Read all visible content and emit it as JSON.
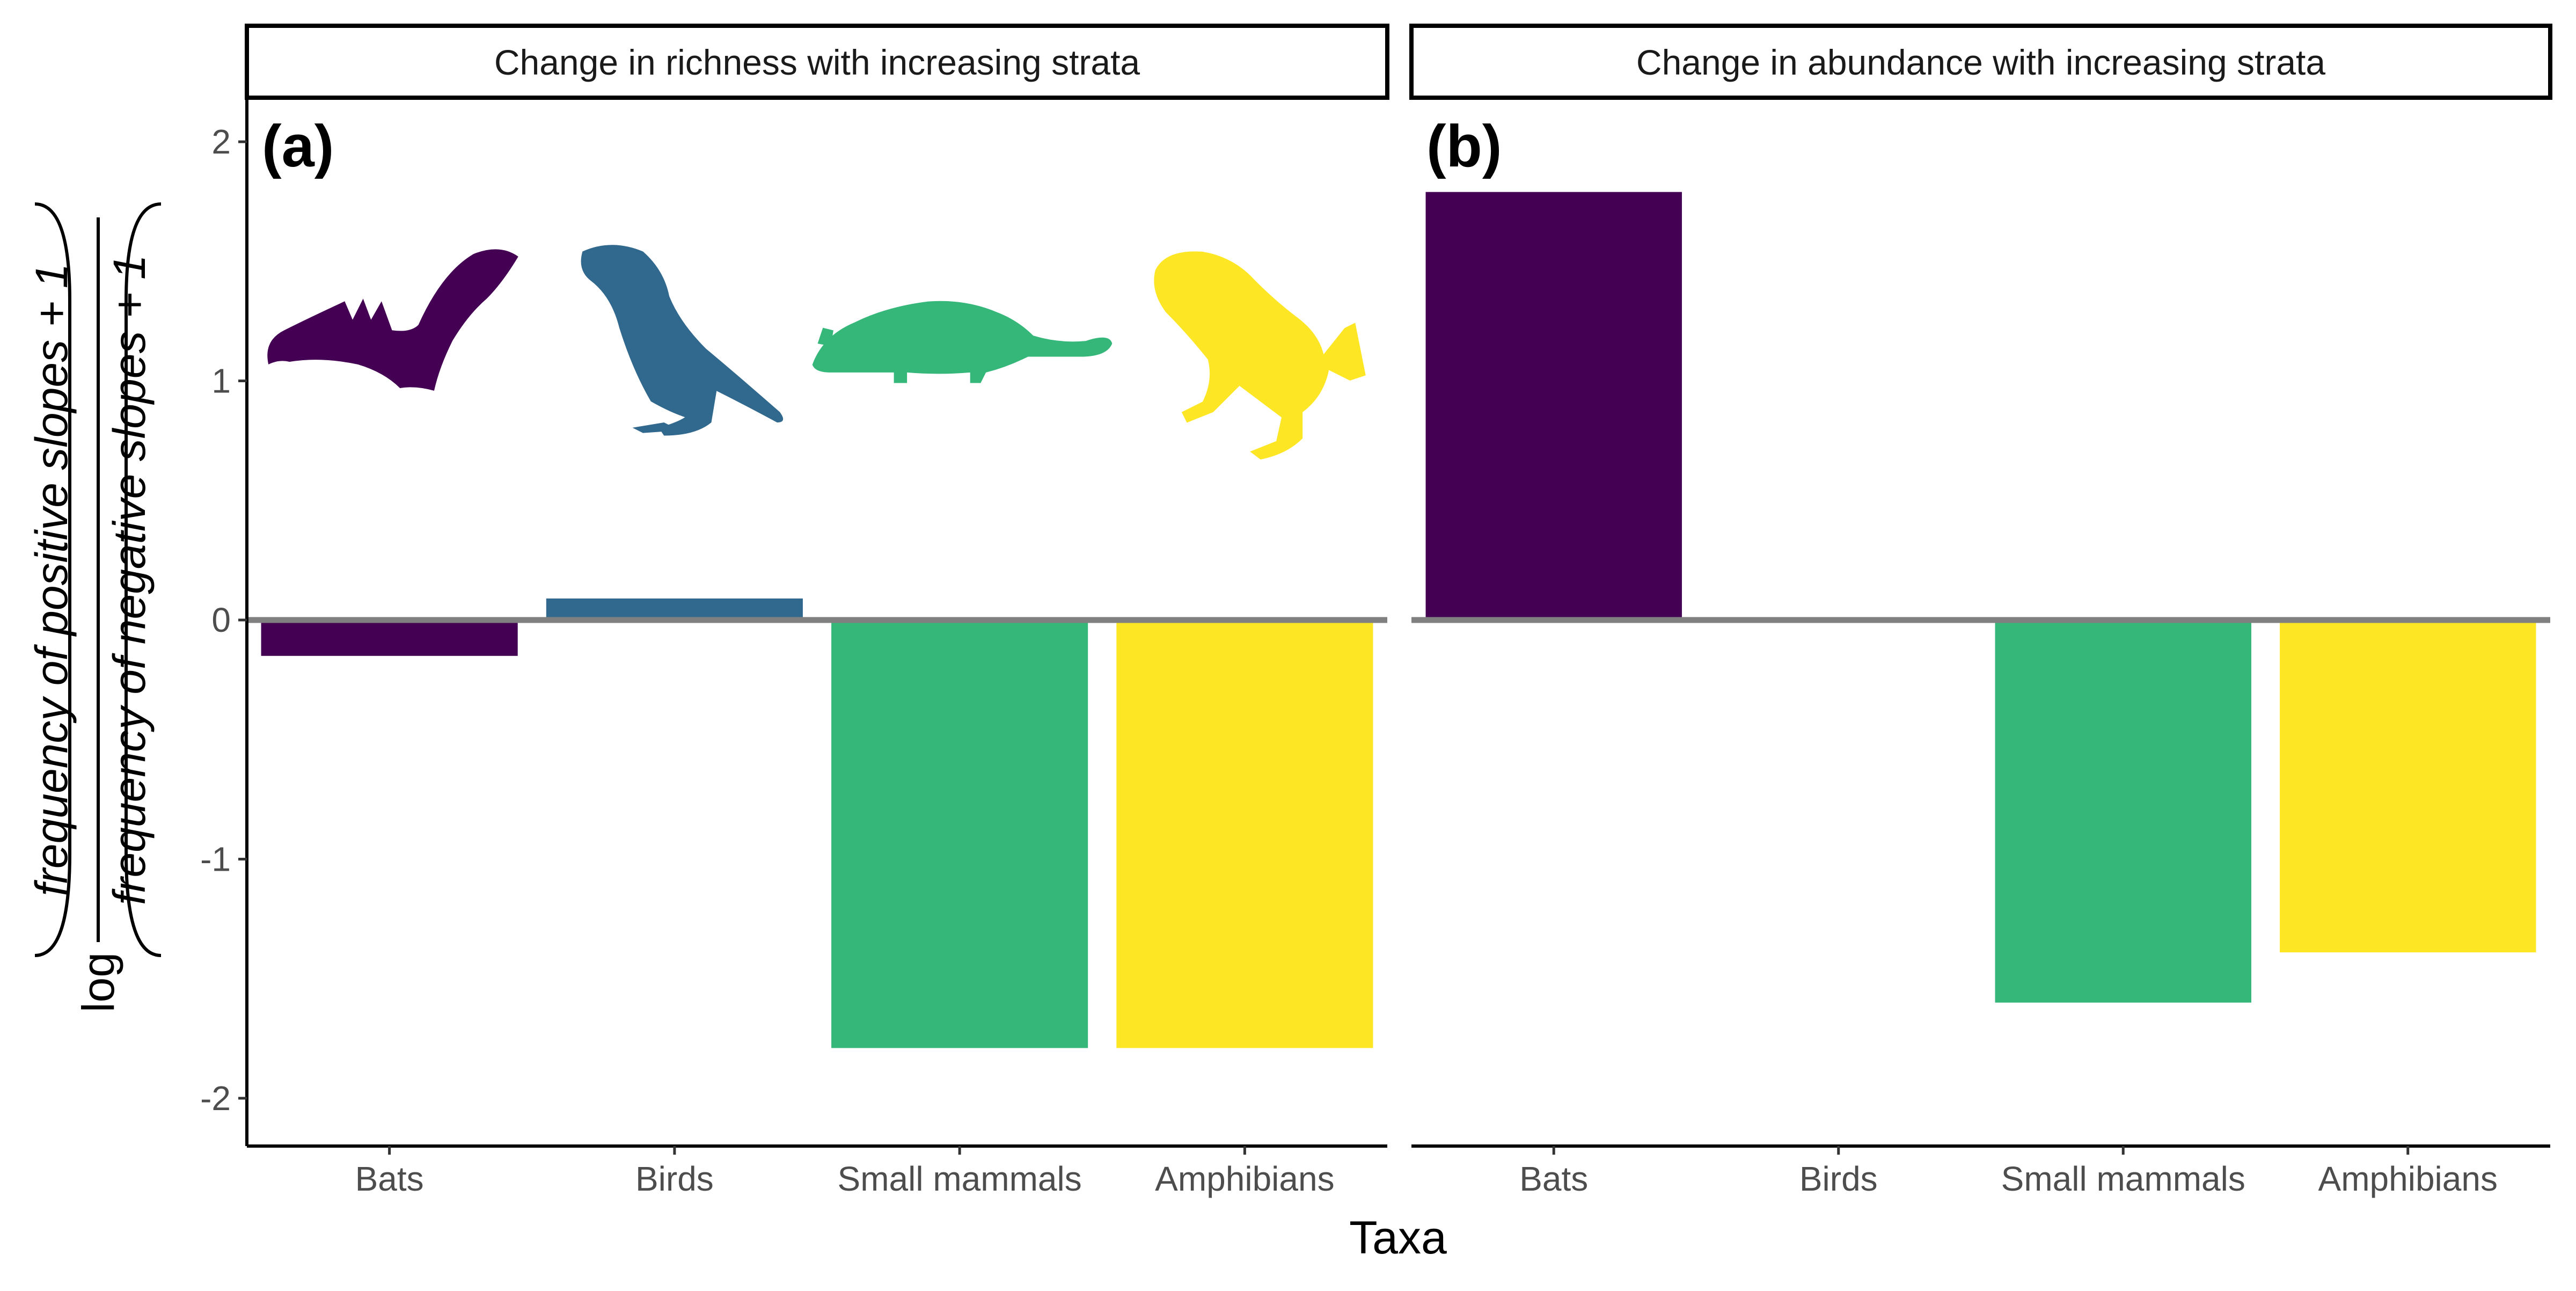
{
  "chart_data": {
    "type": "bar",
    "xlabel": "Taxa",
    "ylabel": {
      "prefix": "log",
      "numerator": "frequency of positive slopes + 1",
      "denominator": "frequency of negative slopes + 1"
    },
    "ylim": [
      -2.2,
      2.2
    ],
    "yticks": [
      2,
      1,
      0,
      -1,
      -2
    ],
    "ytick_labels": [
      "2",
      "1",
      "0",
      "-1",
      "-2"
    ],
    "categories": [
      "Bats",
      "Birds",
      "Small mammals",
      "Amphibians"
    ],
    "colors": [
      "#440154",
      "#31688E",
      "#35B779",
      "#FDE725"
    ],
    "icons": [
      "bat-icon",
      "bird-icon",
      "opossum-icon",
      "frog-icon"
    ],
    "grid": false,
    "legend": "none",
    "panels": [
      {
        "strip": "Change in richness with increasing strata",
        "tag": "(a)",
        "values": [
          -0.15,
          0.09,
          -1.79,
          -1.79
        ]
      },
      {
        "strip": "Change in abundance with increasing strata",
        "tag": "(b)",
        "values": [
          1.79,
          0,
          -1.6,
          -1.39
        ]
      }
    ]
  }
}
